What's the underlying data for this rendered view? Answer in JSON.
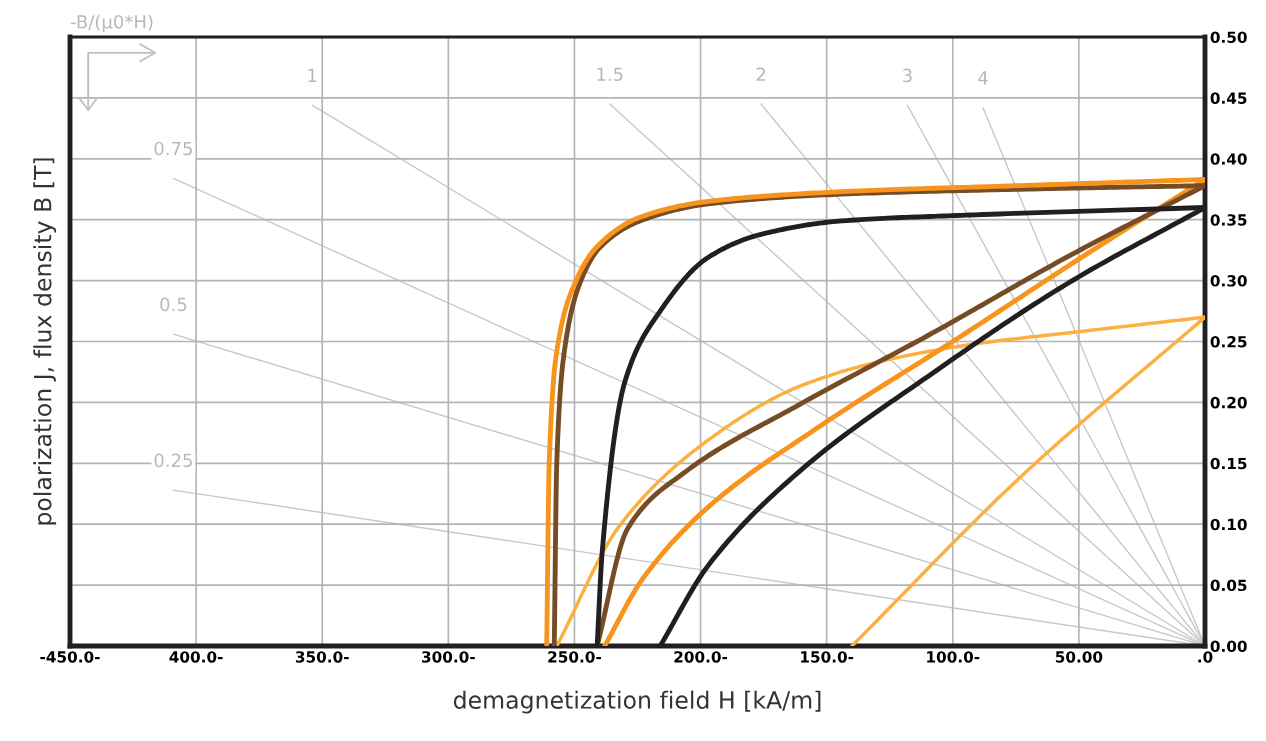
{
  "chart_data": {
    "type": "line",
    "xlabel": "demagnetization field H [kA/m]",
    "ylabel": "polarization J, flux density B [T]",
    "xlim": [
      -450,
      0
    ],
    "ylim": [
      0,
      0.5
    ],
    "xticks": [
      {
        "value": -450,
        "label": "-450.0-"
      },
      {
        "value": -400,
        "label": "400.0-"
      },
      {
        "value": -350,
        "label": "350.0-"
      },
      {
        "value": -300,
        "label": "300.0-"
      },
      {
        "value": -250,
        "label": "250.0-"
      },
      {
        "value": -200,
        "label": "200.0-"
      },
      {
        "value": -150,
        "label": "150.0-"
      },
      {
        "value": -100,
        "label": "100.0-"
      },
      {
        "value": -50,
        "label": "50.00"
      },
      {
        "value": 0,
        "label": ".0"
      }
    ],
    "yticks": [
      {
        "value": 0,
        "label": "0.00"
      },
      {
        "value": 0.05,
        "label": "0.05"
      },
      {
        "value": 0.1,
        "label": "0.10"
      },
      {
        "value": 0.15,
        "label": "0.15"
      },
      {
        "value": 0.2,
        "label": "0.20"
      },
      {
        "value": 0.25,
        "label": "0.25"
      },
      {
        "value": 0.3,
        "label": "0.30"
      },
      {
        "value": 0.35,
        "label": "0.35"
      },
      {
        "value": 0.4,
        "label": "0.40"
      },
      {
        "value": 0.45,
        "label": "0.45"
      },
      {
        "value": 0.5,
        "label": "0.50"
      }
    ],
    "grid": true,
    "series": [
      {
        "color": "#c8c8c8",
        "x": [
          -409,
          0
        ],
        "values": [
          0.128,
          0
        ]
      },
      {
        "color": "#c8c8c8",
        "x": [
          -409,
          0
        ],
        "values": [
          0.256,
          0
        ]
      },
      {
        "color": "#c8c8c8",
        "x": [
          -409,
          0
        ],
        "values": [
          0.384,
          0
        ]
      },
      {
        "color": "#c8c8c8",
        "x": [
          -354,
          0
        ],
        "values": [
          0.444,
          0
        ]
      },
      {
        "color": "#c8c8c8",
        "x": [
          -236,
          0
        ],
        "values": [
          0.445,
          0
        ]
      },
      {
        "color": "#c8c8c8",
        "x": [
          -176,
          0
        ],
        "values": [
          0.445,
          0
        ]
      },
      {
        "color": "#c8c8c8",
        "x": [
          -118,
          0
        ],
        "values": [
          0.444,
          0
        ]
      },
      {
        "color": "#c8c8c8",
        "x": [
          -88,
          0
        ],
        "values": [
          0.442,
          0
        ]
      },
      {
        "color": "#fbb040",
        "x": [
          -140,
          -73,
          0
        ],
        "values": [
          0,
          0.139,
          0.27
        ]
      },
      {
        "color": "#fbb040",
        "x": [
          -257,
          -232,
          -197,
          -161,
          -126,
          -91,
          -46,
          0
        ],
        "values": [
          0,
          0.099,
          0.169,
          0.213,
          0.235,
          0.248,
          0.259,
          0.27
        ]
      },
      {
        "color": "#231f20",
        "x": [
          -216,
          -197,
          -161,
          -108,
          -55,
          0
        ],
        "values": [
          0,
          0.066,
          0.143,
          0.224,
          0.297,
          0.36
        ]
      },
      {
        "color": "#f7941d",
        "x": [
          -238,
          -223,
          -197,
          -153,
          -100,
          -46,
          0
        ],
        "values": [
          0,
          0.055,
          0.114,
          0.18,
          0.25,
          0.323,
          0.383
        ]
      },
      {
        "color": "#754c24",
        "x": [
          -241,
          -229,
          -206,
          -161,
          -108,
          -55,
          0
        ],
        "values": [
          0,
          0.096,
          0.143,
          0.198,
          0.257,
          0.319,
          0.378
        ]
      },
      {
        "color": "#231f20",
        "x": [
          -241,
          -239,
          -230,
          -216,
          -197,
          -176,
          -144,
          -91,
          0
        ],
        "values": [
          0,
          0.077,
          0.217,
          0.275,
          0.319,
          0.338,
          0.349,
          0.354,
          0.36
        ]
      },
      {
        "color": "#754c24",
        "x": [
          -258,
          -257,
          -254,
          -248,
          -240,
          -224,
          -197,
          -144,
          -73,
          0
        ],
        "values": [
          0,
          0.151,
          0.242,
          0.297,
          0.327,
          0.349,
          0.363,
          0.371,
          0.375,
          0.378
        ]
      },
      {
        "color": "#f7941d",
        "x": [
          -261,
          -260,
          -257,
          -250,
          -241,
          -224,
          -197,
          -144,
          -73,
          0
        ],
        "values": [
          0,
          0.151,
          0.242,
          0.297,
          0.328,
          0.352,
          0.365,
          0.373,
          0.378,
          0.383
        ]
      }
    ],
    "annotations": [
      "-B/(μ0*H)",
      {
        "text": "0.25",
        "x": -409,
        "y": 0.128
      },
      {
        "text": "0.5",
        "x": -409,
        "y": 0.256
      },
      {
        "text": "0.75",
        "x": -409,
        "y": 0.384
      },
      {
        "text": "1",
        "x": -354,
        "y": 0.444
      },
      {
        "text": "1.5",
        "x": -236,
        "y": 0.445
      },
      {
        "text": "2",
        "x": -176,
        "y": 0.445
      },
      {
        "text": "3",
        "x": -118,
        "y": 0.444
      },
      {
        "text": "4",
        "x": -88,
        "y": 0.442
      }
    ]
  }
}
